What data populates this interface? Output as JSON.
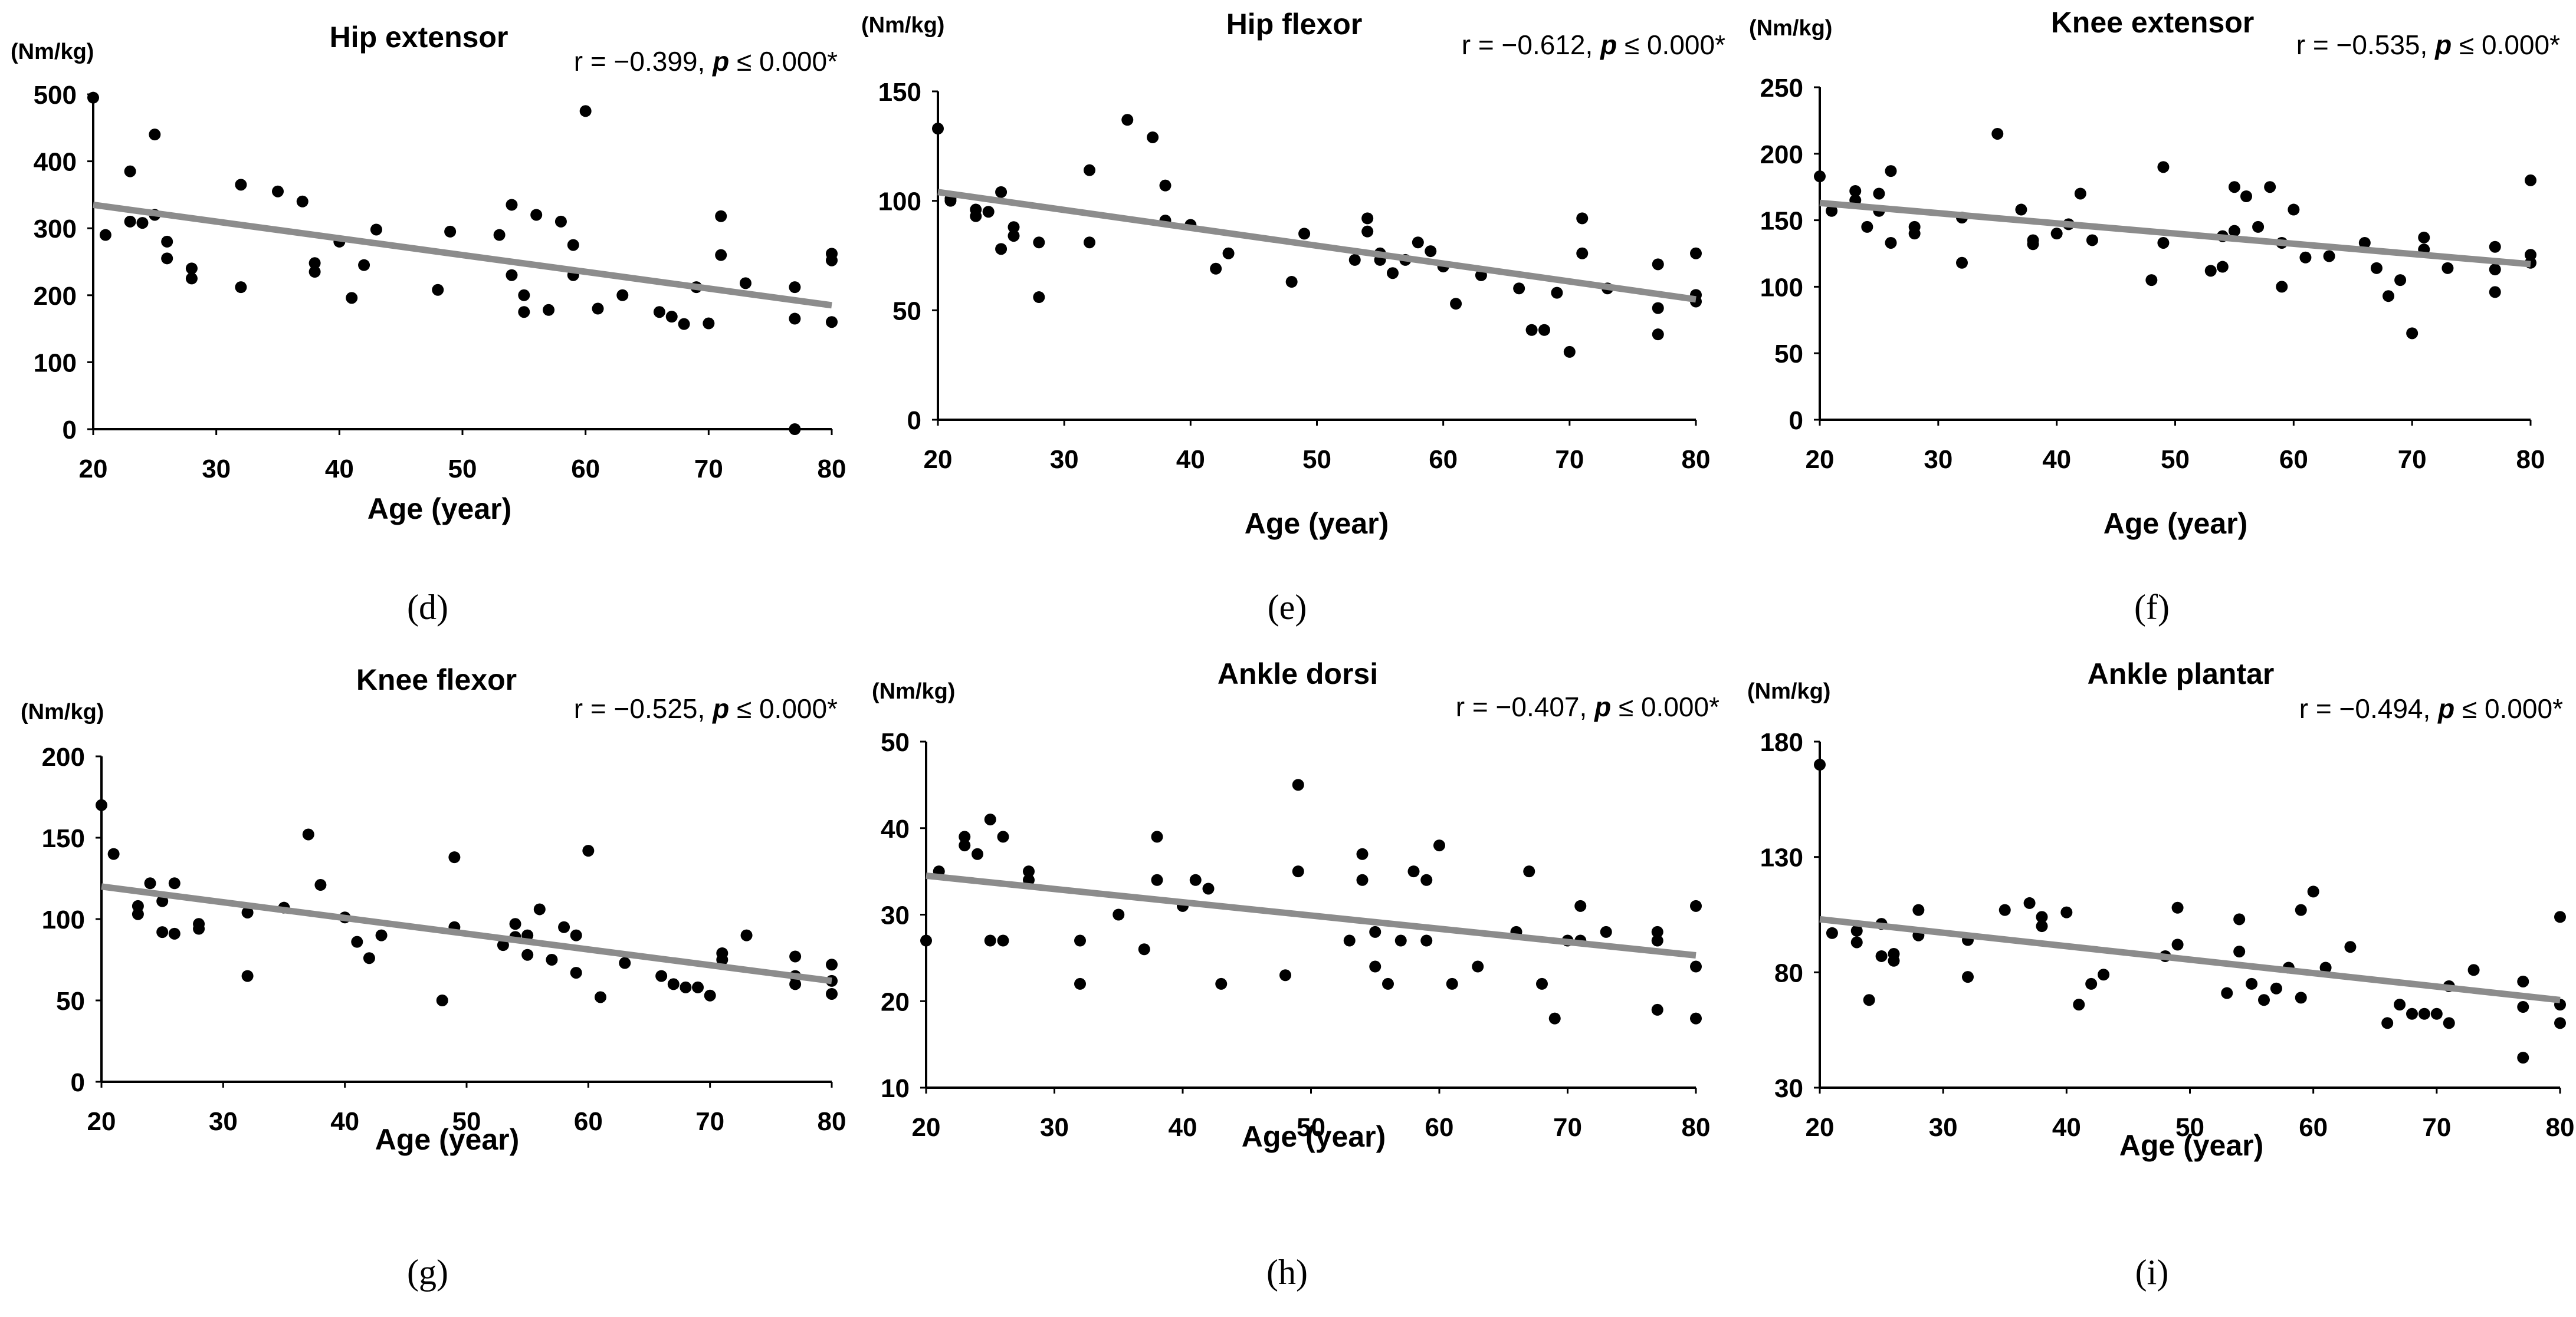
{
  "figure": {
    "panel_captions": [
      "(d)",
      "(e)",
      "(f)",
      "(g)",
      "(h)",
      "(i)"
    ]
  },
  "chart_data": [
    {
      "id": "d",
      "type": "scatter",
      "caption": "(d)",
      "title": "Hip extensor",
      "ylabel": "(Nm/kg)",
      "xlabel": "Age (year)",
      "stat_r": "r = −0.399, ",
      "stat_p": "p",
      "stat_rest": " ≤ 0.000*",
      "xlim": [
        20,
        80
      ],
      "ylim": [
        0,
        500
      ],
      "xticks": [
        20,
        30,
        40,
        50,
        60,
        70,
        80
      ],
      "yticks": [
        0,
        100,
        200,
        300,
        400,
        500
      ],
      "trend": [
        [
          20,
          335
        ],
        [
          80,
          185
        ]
      ],
      "points": [
        [
          20,
          495
        ],
        [
          21,
          290
        ],
        [
          23,
          385
        ],
        [
          23,
          310
        ],
        [
          24,
          308
        ],
        [
          25,
          440
        ],
        [
          25,
          320
        ],
        [
          26,
          280
        ],
        [
          26,
          255
        ],
        [
          28,
          240
        ],
        [
          28,
          225
        ],
        [
          32,
          365
        ],
        [
          32,
          212
        ],
        [
          35,
          355
        ],
        [
          37,
          340
        ],
        [
          38,
          248
        ],
        [
          38,
          235
        ],
        [
          40,
          280
        ],
        [
          41,
          196
        ],
        [
          42,
          245
        ],
        [
          43,
          298
        ],
        [
          48,
          208
        ],
        [
          49,
          295
        ],
        [
          53,
          290
        ],
        [
          54,
          335
        ],
        [
          54,
          230
        ],
        [
          55,
          200
        ],
        [
          55,
          175
        ],
        [
          56,
          320
        ],
        [
          57,
          178
        ],
        [
          58,
          310
        ],
        [
          59,
          275
        ],
        [
          59,
          230
        ],
        [
          60,
          475
        ],
        [
          61,
          180
        ],
        [
          63,
          200
        ],
        [
          66,
          175
        ],
        [
          67,
          168
        ],
        [
          68,
          157
        ],
        [
          69,
          212
        ],
        [
          70,
          158
        ],
        [
          71,
          318
        ],
        [
          71,
          260
        ],
        [
          73,
          218
        ],
        [
          77,
          212
        ],
        [
          77,
          165
        ],
        [
          77,
          0
        ],
        [
          80,
          262
        ],
        [
          80,
          252
        ],
        [
          80,
          160
        ]
      ]
    },
    {
      "id": "e",
      "type": "scatter",
      "caption": "(e)",
      "title": "Hip flexor",
      "ylabel": "(Nm/kg)",
      "xlabel": "Age (year)",
      "stat_r": "r = −0.612, ",
      "stat_p": "p",
      "stat_rest": " ≤ 0.000*",
      "xlim": [
        20,
        80
      ],
      "ylim": [
        0,
        150
      ],
      "xticks": [
        20,
        30,
        40,
        50,
        60,
        70,
        80
      ],
      "yticks": [
        0,
        50,
        100,
        150
      ],
      "trend": [
        [
          20,
          104
        ],
        [
          80,
          55
        ]
      ],
      "points": [
        [
          20,
          133
        ],
        [
          21,
          101
        ],
        [
          21,
          100
        ],
        [
          23,
          96
        ],
        [
          23,
          93
        ],
        [
          24,
          95
        ],
        [
          25,
          104
        ],
        [
          25,
          78
        ],
        [
          26,
          88
        ],
        [
          26,
          84
        ],
        [
          28,
          81
        ],
        [
          28,
          56
        ],
        [
          32,
          114
        ],
        [
          32,
          81
        ],
        [
          35,
          137
        ],
        [
          37,
          129
        ],
        [
          38,
          107
        ],
        [
          38,
          91
        ],
        [
          40,
          89
        ],
        [
          42,
          69
        ],
        [
          43,
          76
        ],
        [
          48,
          63
        ],
        [
          49,
          85
        ],
        [
          53,
          73
        ],
        [
          54,
          92
        ],
        [
          54,
          86
        ],
        [
          55,
          76
        ],
        [
          55,
          73
        ],
        [
          56,
          67
        ],
        [
          57,
          73
        ],
        [
          58,
          81
        ],
        [
          59,
          77
        ],
        [
          60,
          70
        ],
        [
          61,
          53
        ],
        [
          63,
          66
        ],
        [
          66,
          60
        ],
        [
          67,
          41
        ],
        [
          68,
          41
        ],
        [
          69,
          58
        ],
        [
          70,
          31
        ],
        [
          71,
          92
        ],
        [
          71,
          76
        ],
        [
          73,
          60
        ],
        [
          77,
          71
        ],
        [
          77,
          51
        ],
        [
          77,
          39
        ],
        [
          80,
          76
        ],
        [
          80,
          57
        ],
        [
          80,
          54
        ]
      ]
    },
    {
      "id": "f",
      "type": "scatter",
      "caption": "(f)",
      "title": "Knee extensor",
      "ylabel": "(Nm/kg)",
      "xlabel": "Age (year)",
      "stat_r": "r = −0.535, ",
      "stat_p": "p",
      "stat_rest": " ≤ 0.000*",
      "xlim": [
        20,
        80
      ],
      "ylim": [
        0,
        250
      ],
      "xticks": [
        20,
        30,
        40,
        50,
        60,
        70,
        80
      ],
      "yticks": [
        0,
        50,
        100,
        150,
        200,
        250
      ],
      "trend": [
        [
          20,
          163
        ],
        [
          80,
          117
        ]
      ],
      "points": [
        [
          20,
          183
        ],
        [
          21,
          157
        ],
        [
          23,
          172
        ],
        [
          23,
          165
        ],
        [
          24,
          145
        ],
        [
          25,
          170
        ],
        [
          25,
          157
        ],
        [
          26,
          187
        ],
        [
          26,
          133
        ],
        [
          28,
          145
        ],
        [
          28,
          140
        ],
        [
          32,
          152
        ],
        [
          32,
          118
        ],
        [
          35,
          215
        ],
        [
          37,
          158
        ],
        [
          38,
          135
        ],
        [
          38,
          132
        ],
        [
          40,
          140
        ],
        [
          41,
          147
        ],
        [
          42,
          170
        ],
        [
          43,
          135
        ],
        [
          48,
          105
        ],
        [
          49,
          190
        ],
        [
          49,
          133
        ],
        [
          53,
          112
        ],
        [
          54,
          138
        ],
        [
          54,
          115
        ],
        [
          55,
          175
        ],
        [
          55,
          142
        ],
        [
          56,
          168
        ],
        [
          57,
          145
        ],
        [
          58,
          175
        ],
        [
          59,
          133
        ],
        [
          59,
          100
        ],
        [
          60,
          158
        ],
        [
          61,
          122
        ],
        [
          63,
          123
        ],
        [
          66,
          133
        ],
        [
          67,
          114
        ],
        [
          68,
          93
        ],
        [
          69,
          105
        ],
        [
          70,
          65
        ],
        [
          71,
          137
        ],
        [
          71,
          128
        ],
        [
          73,
          114
        ],
        [
          77,
          130
        ],
        [
          77,
          113
        ],
        [
          77,
          96
        ],
        [
          80,
          180
        ],
        [
          80,
          124
        ],
        [
          80,
          118
        ]
      ]
    },
    {
      "id": "g",
      "type": "scatter",
      "caption": "(g)",
      "title": "Knee flexor",
      "ylabel": "(Nm/kg)",
      "xlabel": "Age (year)",
      "stat_r": "r = −0.525, ",
      "stat_p": "p",
      "stat_rest": " ≤ 0.000*",
      "xlim": [
        20,
        80
      ],
      "ylim": [
        0,
        200
      ],
      "xticks": [
        20,
        30,
        40,
        50,
        60,
        70,
        80
      ],
      "yticks": [
        0,
        50,
        100,
        150,
        200
      ],
      "trend": [
        [
          20,
          120
        ],
        [
          80,
          62
        ]
      ],
      "points": [
        [
          20,
          170
        ],
        [
          21,
          140
        ],
        [
          23,
          108
        ],
        [
          23,
          103
        ],
        [
          24,
          122
        ],
        [
          25,
          111
        ],
        [
          25,
          92
        ],
        [
          26,
          122
        ],
        [
          26,
          91
        ],
        [
          28,
          97
        ],
        [
          28,
          94
        ],
        [
          32,
          104
        ],
        [
          32,
          65
        ],
        [
          35,
          107
        ],
        [
          37,
          152
        ],
        [
          38,
          121
        ],
        [
          40,
          101
        ],
        [
          41,
          86
        ],
        [
          42,
          76
        ],
        [
          43,
          90
        ],
        [
          48,
          50
        ],
        [
          49,
          138
        ],
        [
          49,
          95
        ],
        [
          53,
          84
        ],
        [
          54,
          97
        ],
        [
          54,
          89
        ],
        [
          55,
          90
        ],
        [
          55,
          78
        ],
        [
          56,
          106
        ],
        [
          57,
          75
        ],
        [
          58,
          95
        ],
        [
          59,
          90
        ],
        [
          59,
          67
        ],
        [
          60,
          142
        ],
        [
          61,
          52
        ],
        [
          63,
          73
        ],
        [
          66,
          65
        ],
        [
          67,
          60
        ],
        [
          68,
          58
        ],
        [
          69,
          58
        ],
        [
          70,
          53
        ],
        [
          71,
          79
        ],
        [
          71,
          75
        ],
        [
          73,
          90
        ],
        [
          77,
          77
        ],
        [
          77,
          65
        ],
        [
          77,
          60
        ],
        [
          80,
          72
        ],
        [
          80,
          62
        ],
        [
          80,
          54
        ]
      ]
    },
    {
      "id": "h",
      "type": "scatter",
      "caption": "(h)",
      "title": "Ankle dorsi",
      "ylabel": "(Nm/kg)",
      "xlabel": "Age (year)",
      "stat_r": "r = −0.407, ",
      "stat_p": "p",
      "stat_rest": " ≤ 0.000*",
      "xlim": [
        20,
        80
      ],
      "ylim": [
        10,
        50
      ],
      "xticks": [
        20,
        30,
        40,
        50,
        60,
        70,
        80
      ],
      "yticks": [
        10,
        20,
        30,
        40,
        50
      ],
      "trend": [
        [
          20,
          34.5
        ],
        [
          80,
          25.3
        ]
      ],
      "points": [
        [
          20,
          27
        ],
        [
          21,
          35
        ],
        [
          23,
          39
        ],
        [
          23,
          38
        ],
        [
          24,
          37
        ],
        [
          25,
          41
        ],
        [
          25,
          27
        ],
        [
          26,
          39
        ],
        [
          26,
          27
        ],
        [
          28,
          35
        ],
        [
          28,
          34
        ],
        [
          32,
          27
        ],
        [
          32,
          22
        ],
        [
          35,
          30
        ],
        [
          37,
          26
        ],
        [
          38,
          39
        ],
        [
          38,
          34
        ],
        [
          40,
          31
        ],
        [
          41,
          34
        ],
        [
          42,
          33
        ],
        [
          43,
          22
        ],
        [
          48,
          23
        ],
        [
          49,
          45
        ],
        [
          49,
          35
        ],
        [
          53,
          27
        ],
        [
          54,
          37
        ],
        [
          54,
          34
        ],
        [
          55,
          28
        ],
        [
          55,
          24
        ],
        [
          56,
          22
        ],
        [
          57,
          27
        ],
        [
          58,
          35
        ],
        [
          59,
          34
        ],
        [
          59,
          27
        ],
        [
          60,
          38
        ],
        [
          61,
          22
        ],
        [
          63,
          24
        ],
        [
          66,
          28
        ],
        [
          67,
          35
        ],
        [
          68,
          22
        ],
        [
          69,
          18
        ],
        [
          70,
          27
        ],
        [
          71,
          31
        ],
        [
          71,
          27
        ],
        [
          73,
          28
        ],
        [
          77,
          28
        ],
        [
          77,
          27
        ],
        [
          77,
          19
        ],
        [
          80,
          31
        ],
        [
          80,
          24
        ],
        [
          80,
          18
        ]
      ]
    },
    {
      "id": "i",
      "type": "scatter",
      "caption": "(i)",
      "title": "Ankle plantar",
      "ylabel": "(Nm/kg)",
      "xlabel": "Age (year)",
      "stat_r": "r = −0.494, ",
      "stat_p": "p",
      "stat_rest": " ≤ 0.000*",
      "xlim": [
        20,
        80
      ],
      "ylim": [
        30,
        180
      ],
      "xticks": [
        20,
        30,
        40,
        50,
        60,
        70,
        80
      ],
      "yticks": [
        30,
        80,
        130,
        180
      ],
      "trend": [
        [
          20,
          103
        ],
        [
          80,
          68
        ]
      ],
      "points": [
        [
          20,
          170
        ],
        [
          21,
          97
        ],
        [
          23,
          98
        ],
        [
          23,
          93
        ],
        [
          24,
          68
        ],
        [
          25,
          101
        ],
        [
          25,
          87
        ],
        [
          26,
          88
        ],
        [
          26,
          85
        ],
        [
          28,
          107
        ],
        [
          28,
          96
        ],
        [
          32,
          94
        ],
        [
          32,
          78
        ],
        [
          35,
          107
        ],
        [
          37,
          110
        ],
        [
          38,
          104
        ],
        [
          38,
          100
        ],
        [
          40,
          106
        ],
        [
          41,
          66
        ],
        [
          42,
          75
        ],
        [
          43,
          79
        ],
        [
          48,
          87
        ],
        [
          49,
          108
        ],
        [
          49,
          92
        ],
        [
          53,
          71
        ],
        [
          54,
          103
        ],
        [
          54,
          89
        ],
        [
          55,
          75
        ],
        [
          56,
          68
        ],
        [
          57,
          73
        ],
        [
          58,
          82
        ],
        [
          59,
          69
        ],
        [
          59,
          107
        ],
        [
          60,
          115
        ],
        [
          61,
          82
        ],
        [
          63,
          91
        ],
        [
          66,
          58
        ],
        [
          67,
          66
        ],
        [
          68,
          62
        ],
        [
          69,
          62
        ],
        [
          70,
          62
        ],
        [
          71,
          74
        ],
        [
          71,
          58
        ],
        [
          73,
          81
        ],
        [
          77,
          76
        ],
        [
          77,
          65
        ],
        [
          77,
          43
        ],
        [
          80,
          104
        ],
        [
          80,
          66
        ],
        [
          80,
          58
        ]
      ]
    }
  ]
}
